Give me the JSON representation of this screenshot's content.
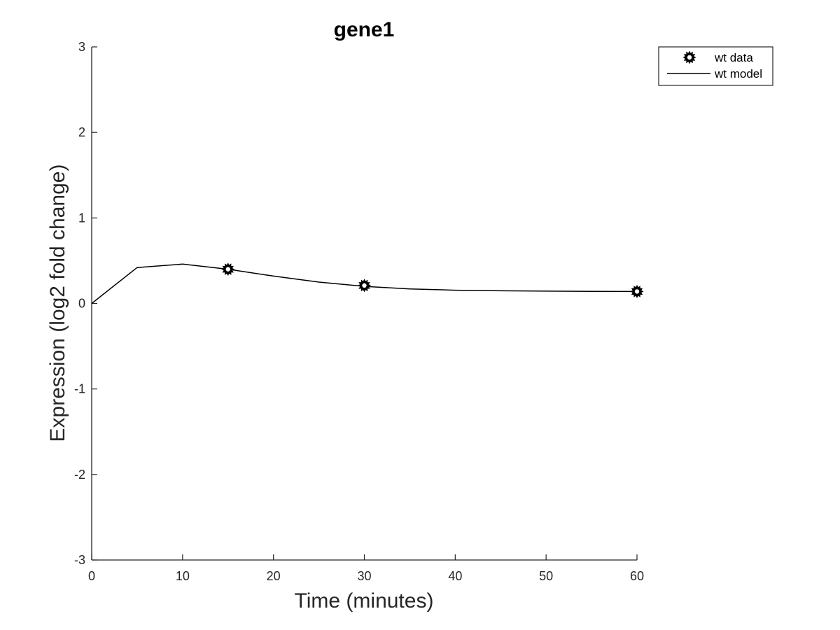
{
  "chart_data": {
    "type": "line",
    "title": "gene1",
    "xlabel": "Time (minutes)",
    "ylabel": "Expression (log2 fold change)",
    "xlim": [
      0,
      60
    ],
    "ylim": [
      -3,
      3
    ],
    "x_ticks": [
      0,
      10,
      20,
      30,
      40,
      50,
      60
    ],
    "y_ticks": [
      -3,
      -2,
      -1,
      0,
      1,
      2,
      3
    ],
    "grid": false,
    "legend_position": "top-right",
    "series": [
      {
        "name": "wt data",
        "style": "markers",
        "marker": "star-burst",
        "color": "#000000",
        "x": [
          15,
          30,
          60
        ],
        "y": [
          0.4,
          0.21,
          0.14
        ]
      },
      {
        "name": "wt model",
        "style": "line",
        "color": "#000000",
        "x": [
          0,
          5,
          10,
          15,
          20,
          25,
          30,
          35,
          40,
          45,
          50,
          55,
          60
        ],
        "y": [
          0.0,
          0.42,
          0.46,
          0.4,
          0.32,
          0.25,
          0.2,
          0.17,
          0.155,
          0.148,
          0.144,
          0.141,
          0.14
        ]
      }
    ]
  }
}
